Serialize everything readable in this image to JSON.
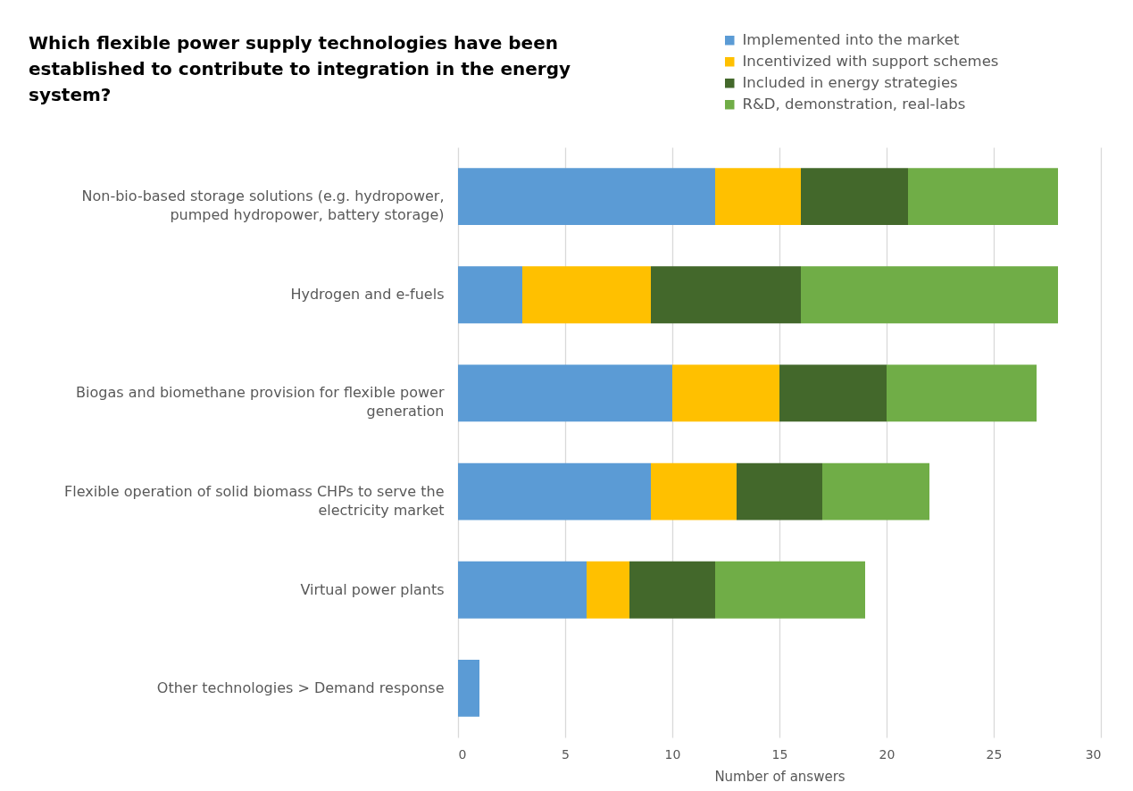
{
  "chart_data": {
    "type": "bar",
    "orientation": "horizontal",
    "stacked": true,
    "title": "Which flexible power supply technologies have been established to contribute to integration in the energy system?",
    "xlabel": "Number of answers",
    "categories": [
      "Non-bio-based storage solutions (e.g. hydropower, pumped hydropower, battery storage)",
      "Hydrogen and e-fuels",
      "Biogas and biomethane provision for flexible power generation",
      "Flexible operation of solid biomass CHPs to serve the electricity market",
      "Virtual power plants",
      "Other technologies > Demand response"
    ],
    "series": [
      {
        "name": "Implemented into the market",
        "color": "#5b9bd5",
        "values": [
          12,
          3,
          10,
          9,
          6,
          1
        ]
      },
      {
        "name": "Incentivized with support schemes",
        "color": "#ffc000",
        "values": [
          4,
          6,
          5,
          4,
          2,
          0
        ]
      },
      {
        "name": "Included in energy strategies",
        "color": "#43682b",
        "values": [
          5,
          7,
          5,
          4,
          4,
          0
        ]
      },
      {
        "name": "R&D, demonstration, real-labs",
        "color": "#70ad47",
        "values": [
          7,
          12,
          7,
          5,
          7,
          0
        ]
      }
    ],
    "xlim": [
      0,
      30
    ],
    "xticks": [
      0,
      5,
      10,
      15,
      20,
      25,
      30
    ],
    "grid": "x",
    "legend": "top right"
  }
}
